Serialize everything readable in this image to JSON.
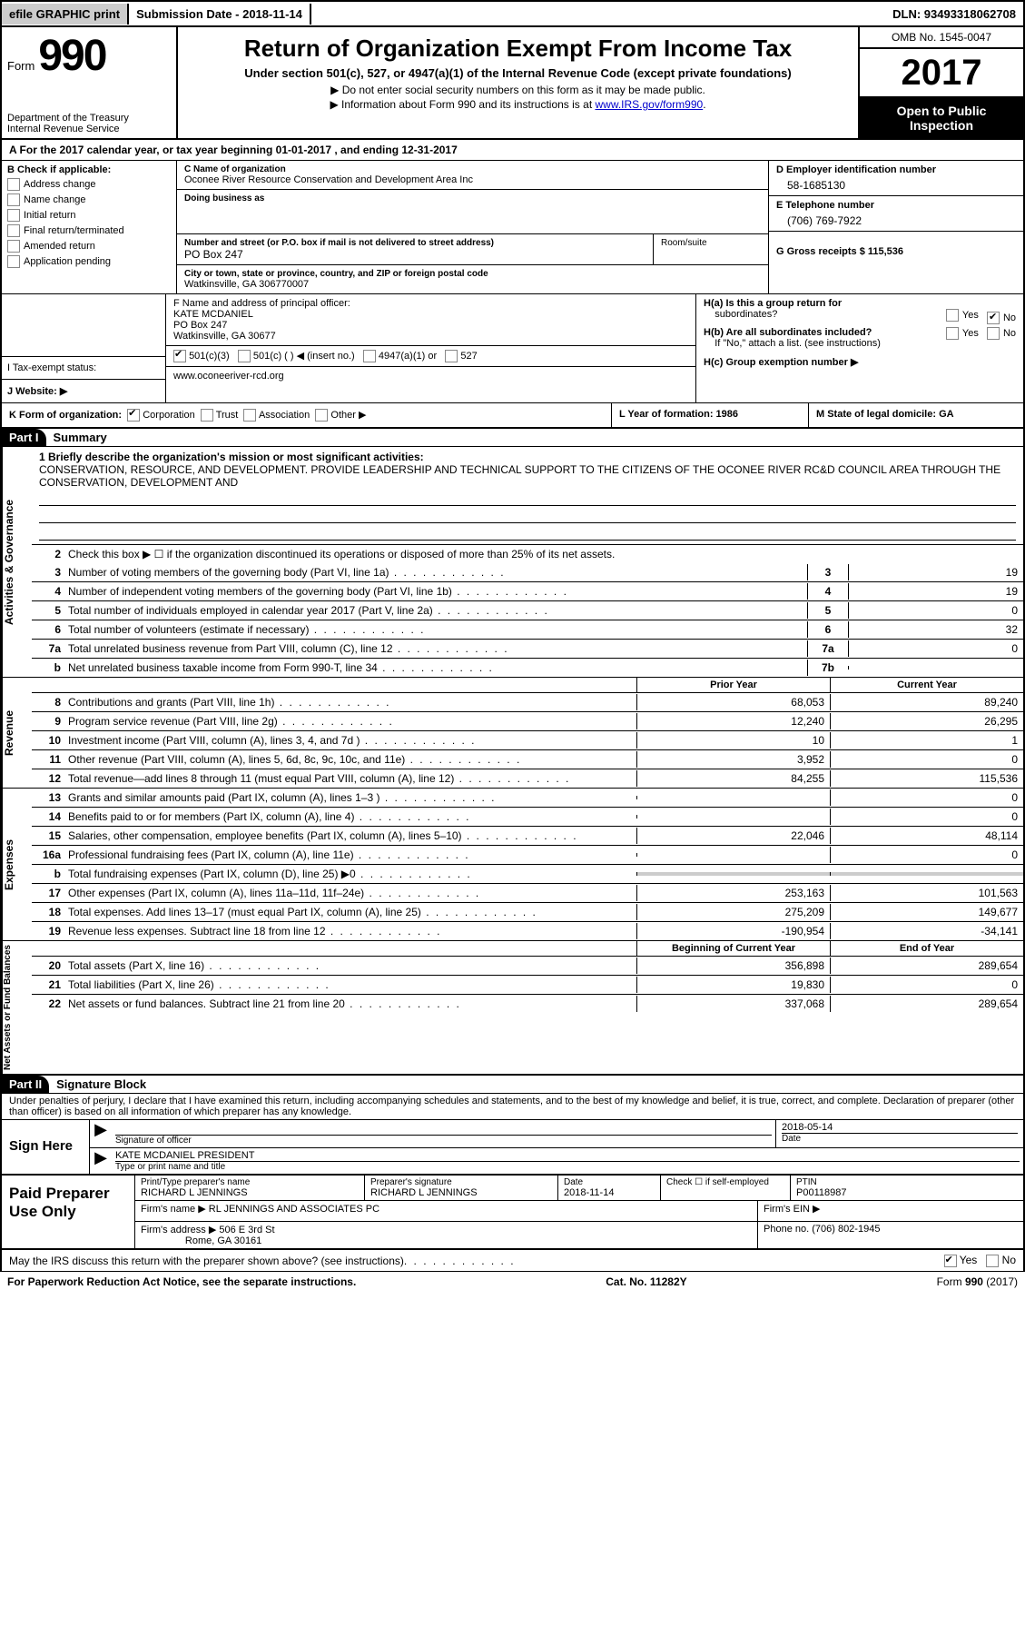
{
  "top": {
    "efile": "efile GRAPHIC print",
    "submission": "Submission Date - 2018-11-14",
    "dln": "DLN: 93493318062708"
  },
  "header": {
    "form_label": "Form",
    "form_number": "990",
    "dept1": "Department of the Treasury",
    "dept2": "Internal Revenue Service",
    "title": "Return of Organization Exempt From Income Tax",
    "subtitle": "Under section 501(c), 527, or 4947(a)(1) of the Internal Revenue Code (except private foundations)",
    "note1": "▶ Do not enter social security numbers on this form as it may be made public.",
    "note2_pre": "▶ Information about Form 990 and its instructions is at ",
    "note2_link": "www.IRS.gov/form990",
    "omb": "OMB No. 1545-0047",
    "year": "2017",
    "inspect1": "Open to Public",
    "inspect2": "Inspection"
  },
  "rowA": "A  For the 2017 calendar year, or tax year beginning 01-01-2017   , and ending 12-31-2017",
  "colB": {
    "label": "B Check if applicable:",
    "items": [
      "Address change",
      "Name change",
      "Initial return",
      "Final return/terminated",
      "Amended return",
      "Application pending"
    ]
  },
  "colC": {
    "name_label": "C Name of organization",
    "name": "Oconee River Resource Conservation and Development Area Inc",
    "dba_label": "Doing business as",
    "dba": "",
    "addr_label": "Number and street (or P.O. box if mail is not delivered to street address)",
    "addr": "PO Box 247",
    "room_label": "Room/suite",
    "city_label": "City or town, state or province, country, and ZIP or foreign postal code",
    "city": "Watkinsville, GA  306770007",
    "f_label": "F Name and address of principal officer:",
    "f_name": "KATE MCDANIEL",
    "f_addr1": "PO Box 247",
    "f_addr2": "Watkinsville, GA  30677"
  },
  "colD": {
    "d_label": "D Employer identification number",
    "d_value": "58-1685130",
    "e_label": "E Telephone number",
    "e_value": "(706) 769-7922",
    "g_label": "G Gross receipts $ 115,536"
  },
  "rowI": {
    "label": "I  Tax-exempt status:",
    "opt1": "501(c)(3)",
    "opt2": "501(c) (   ) ◀ (insert no.)",
    "opt3": "4947(a)(1) or",
    "opt4": "527"
  },
  "rowJ": {
    "label": "J  Website: ▶",
    "value": "www.oconeeriver-rcd.org"
  },
  "rowH": {
    "ha": "H(a)  Is this a group return for",
    "ha2": "subordinates?",
    "hb": "H(b)  Are all subordinates included?",
    "hb2": "If \"No,\" attach a list. (see instructions)",
    "hc": "H(c)  Group exemption number ▶"
  },
  "rowK": {
    "k": "K Form of organization:",
    "opts": [
      "Corporation",
      "Trust",
      "Association",
      "Other ▶"
    ],
    "l": "L Year of formation: 1986",
    "m": "M State of legal domicile: GA"
  },
  "part1": {
    "label": "Part I",
    "title": "Summary",
    "line1_label": "1  Briefly describe the organization's mission or most significant activities:",
    "line1_text": "CONSERVATION, RESOURCE, AND DEVELOPMENT. PROVIDE LEADERSHIP AND TECHNICAL SUPPORT TO THE CITIZENS OF THE OCONEE RIVER RC&D COUNCIL AREA THROUGH THE CONSERVATION, DEVELOPMENT AND",
    "line2": "Check this box ▶ ☐  if the organization discontinued its operations or disposed of more than 25% of its net assets.",
    "side_labels": {
      "gov": "Activities & Governance",
      "rev": "Revenue",
      "exp": "Expenses",
      "net": "Net Assets or\nFund Balances"
    },
    "gov_lines": [
      {
        "n": "3",
        "d": "Number of voting members of the governing body (Part VI, line 1a)",
        "c": "3",
        "v": "19"
      },
      {
        "n": "4",
        "d": "Number of independent voting members of the governing body (Part VI, line 1b)",
        "c": "4",
        "v": "19"
      },
      {
        "n": "5",
        "d": "Total number of individuals employed in calendar year 2017 (Part V, line 2a)",
        "c": "5",
        "v": "0"
      },
      {
        "n": "6",
        "d": "Total number of volunteers (estimate if necessary)",
        "c": "6",
        "v": "32"
      },
      {
        "n": "7a",
        "d": "Total unrelated business revenue from Part VIII, column (C), line 12",
        "c": "7a",
        "v": "0"
      },
      {
        "n": "b",
        "d": "Net unrelated business taxable income from Form 990-T, line 34",
        "c": "7b",
        "v": ""
      }
    ],
    "col_py": "Prior Year",
    "col_cy": "Current Year",
    "rev_lines": [
      {
        "n": "8",
        "d": "Contributions and grants (Part VIII, line 1h)",
        "py": "68,053",
        "cy": "89,240"
      },
      {
        "n": "9",
        "d": "Program service revenue (Part VIII, line 2g)",
        "py": "12,240",
        "cy": "26,295"
      },
      {
        "n": "10",
        "d": "Investment income (Part VIII, column (A), lines 3, 4, and 7d )",
        "py": "10",
        "cy": "1"
      },
      {
        "n": "11",
        "d": "Other revenue (Part VIII, column (A), lines 5, 6d, 8c, 9c, 10c, and 11e)",
        "py": "3,952",
        "cy": "0"
      },
      {
        "n": "12",
        "d": "Total revenue—add lines 8 through 11 (must equal Part VIII, column (A), line 12)",
        "py": "84,255",
        "cy": "115,536"
      }
    ],
    "exp_lines": [
      {
        "n": "13",
        "d": "Grants and similar amounts paid (Part IX, column (A), lines 1–3 )",
        "py": "",
        "cy": "0"
      },
      {
        "n": "14",
        "d": "Benefits paid to or for members (Part IX, column (A), line 4)",
        "py": "",
        "cy": "0"
      },
      {
        "n": "15",
        "d": "Salaries, other compensation, employee benefits (Part IX, column (A), lines 5–10)",
        "py": "22,046",
        "cy": "48,114"
      },
      {
        "n": "16a",
        "d": "Professional fundraising fees (Part IX, column (A), line 11e)",
        "py": "",
        "cy": "0"
      },
      {
        "n": "b",
        "d": "Total fundraising expenses (Part IX, column (D), line 25) ▶0",
        "py": "SHADE",
        "cy": "SHADE"
      },
      {
        "n": "17",
        "d": "Other expenses (Part IX, column (A), lines 11a–11d, 11f–24e)",
        "py": "253,163",
        "cy": "101,563"
      },
      {
        "n": "18",
        "d": "Total expenses. Add lines 13–17 (must equal Part IX, column (A), line 25)",
        "py": "275,209",
        "cy": "149,677"
      },
      {
        "n": "19",
        "d": "Revenue less expenses. Subtract line 18 from line 12",
        "py": "-190,954",
        "cy": "-34,141"
      }
    ],
    "col_boy": "Beginning of Current Year",
    "col_eoy": "End of Year",
    "net_lines": [
      {
        "n": "20",
        "d": "Total assets (Part X, line 16)",
        "py": "356,898",
        "cy": "289,654"
      },
      {
        "n": "21",
        "d": "Total liabilities (Part X, line 26)",
        "py": "19,830",
        "cy": "0"
      },
      {
        "n": "22",
        "d": "Net assets or fund balances. Subtract line 21 from line 20",
        "py": "337,068",
        "cy": "289,654"
      }
    ]
  },
  "part2": {
    "label": "Part II",
    "title": "Signature Block",
    "declaration": "Under penalties of perjury, I declare that I have examined this return, including accompanying schedules and statements, and to the best of my knowledge and belief, it is true, correct, and complete. Declaration of preparer (other than officer) is based on all information of which preparer has any knowledge.",
    "sign_here": "Sign Here",
    "sig_officer": "Signature of officer",
    "sig_date_label": "Date",
    "sig_date": "2018-05-14",
    "officer_name": "KATE MCDANIEL PRESIDENT",
    "type_label": "Type or print name and title",
    "paid": "Paid Preparer Use Only",
    "prep_name_label": "Print/Type preparer's name",
    "prep_name": "RICHARD L JENNINGS",
    "prep_sig_label": "Preparer's signature",
    "prep_sig": "RICHARD L JENNINGS",
    "prep_date_label": "Date",
    "prep_date": "2018-11-14",
    "check_label": "Check ☐ if self-employed",
    "ptin_label": "PTIN",
    "ptin": "P00118987",
    "firm_name_label": "Firm's name    ▶",
    "firm_name": "RL JENNINGS AND ASSOCIATES PC",
    "firm_ein_label": "Firm's EIN ▶",
    "firm_addr_label": "Firm's address ▶",
    "firm_addr1": "506 E 3rd St",
    "firm_addr2": "Rome, GA  30161",
    "firm_phone_label": "Phone no. (706) 802-1945"
  },
  "footer": {
    "discuss": "May the IRS discuss this return with the preparer shown above? (see instructions)",
    "yes": "Yes",
    "no": "No",
    "paperwork": "For Paperwork Reduction Act Notice, see the separate instructions.",
    "cat": "Cat. No. 11282Y",
    "formno": "Form 990 (2017)"
  }
}
